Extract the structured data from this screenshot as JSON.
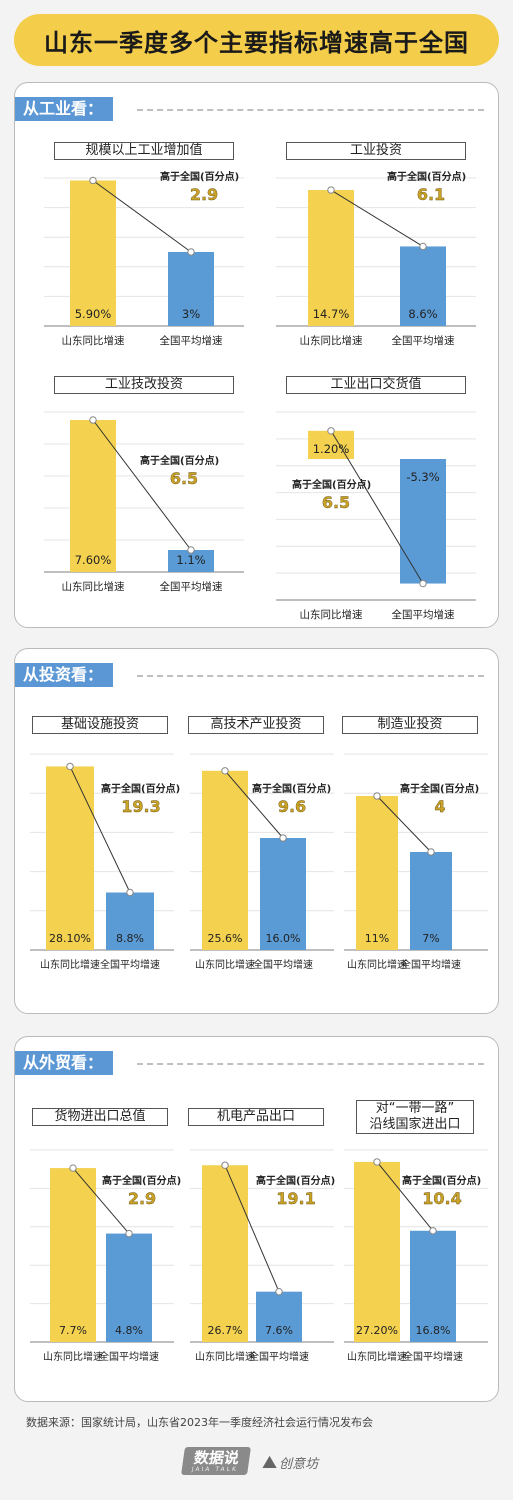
{
  "title": "山东一季度多个主要指标增速高于全国",
  "colors": {
    "shandong": "#f4d24f",
    "national": "#5b9bd5",
    "accent_text": "#c9a227"
  },
  "sections": [
    {
      "label": "从工业看："
    },
    {
      "label": "从投资看："
    },
    {
      "label": "从外贸看："
    }
  ],
  "cat_labels": [
    "山东同比增速",
    "全国平均增速"
  ],
  "diff_caption": "高于全国(百分点)",
  "chart_data": [
    {
      "type": "bar",
      "title": "规模以上工业增加值",
      "categories": [
        "山东同比增速",
        "全国平均增速"
      ],
      "values": [
        5.9,
        3
      ],
      "value_labels": [
        "5.90%",
        "3%"
      ],
      "difference": "2.9"
    },
    {
      "type": "bar",
      "title": "工业投资",
      "categories": [
        "山东同比增速",
        "全国平均增速"
      ],
      "values": [
        14.7,
        8.6
      ],
      "value_labels": [
        "14.7%",
        "8.6%"
      ],
      "difference": "6.1"
    },
    {
      "type": "bar",
      "title": "工业技改投资",
      "categories": [
        "山东同比增速",
        "全国平均增速"
      ],
      "values": [
        7.6,
        1.1
      ],
      "value_labels": [
        "7.60%",
        "1.1%"
      ],
      "difference": "6.5"
    },
    {
      "type": "bar",
      "title": "工业出口交货值",
      "categories": [
        "山东同比增速",
        "全国平均增速"
      ],
      "values": [
        1.2,
        -5.3
      ],
      "value_labels": [
        "1.20%",
        "-5.3%"
      ],
      "difference": "6.5"
    },
    {
      "type": "bar",
      "title": "基础设施投资",
      "categories": [
        "山东同比增速",
        "全国平均增速"
      ],
      "values": [
        28.1,
        8.8
      ],
      "value_labels": [
        "28.10%",
        "8.8%"
      ],
      "difference": "19.3"
    },
    {
      "type": "bar",
      "title": "高技术产业投资",
      "categories": [
        "山东同比增速",
        "全国平均增速"
      ],
      "values": [
        25.6,
        16.0
      ],
      "value_labels": [
        "25.6%",
        "16.0%"
      ],
      "difference": "9.6"
    },
    {
      "type": "bar",
      "title": "制造业投资",
      "categories": [
        "山东同比增速",
        "全国平均增速"
      ],
      "values": [
        11,
        7
      ],
      "value_labels": [
        "11%",
        "7%"
      ],
      "difference": "4"
    },
    {
      "type": "bar",
      "title": "货物进出口总值",
      "categories": [
        "山东同比增速",
        "全国平均增速"
      ],
      "values": [
        7.7,
        4.8
      ],
      "value_labels": [
        "7.7%",
        "4.8%"
      ],
      "difference": "2.9"
    },
    {
      "type": "bar",
      "title": "机电产品出口",
      "categories": [
        "山东同比增速",
        "全国平均增速"
      ],
      "values": [
        26.7,
        7.6
      ],
      "value_labels": [
        "26.7%",
        "7.6%"
      ],
      "difference": "19.1"
    },
    {
      "type": "bar",
      "title": "对“一带一路”\n沿线国家进出口",
      "categories": [
        "山东同比增速",
        "全国平均增速"
      ],
      "values": [
        27.2,
        16.8
      ],
      "value_labels": [
        "27.20%",
        "16.8%"
      ],
      "difference": "10.4"
    }
  ],
  "source": "数据来源：国家统计局，山东省2023年一季度经济社会运行情况发布会",
  "footer": {
    "logo1": "数据说",
    "logo1_sub": "JAIA TALK",
    "logo2": "创意坊"
  }
}
